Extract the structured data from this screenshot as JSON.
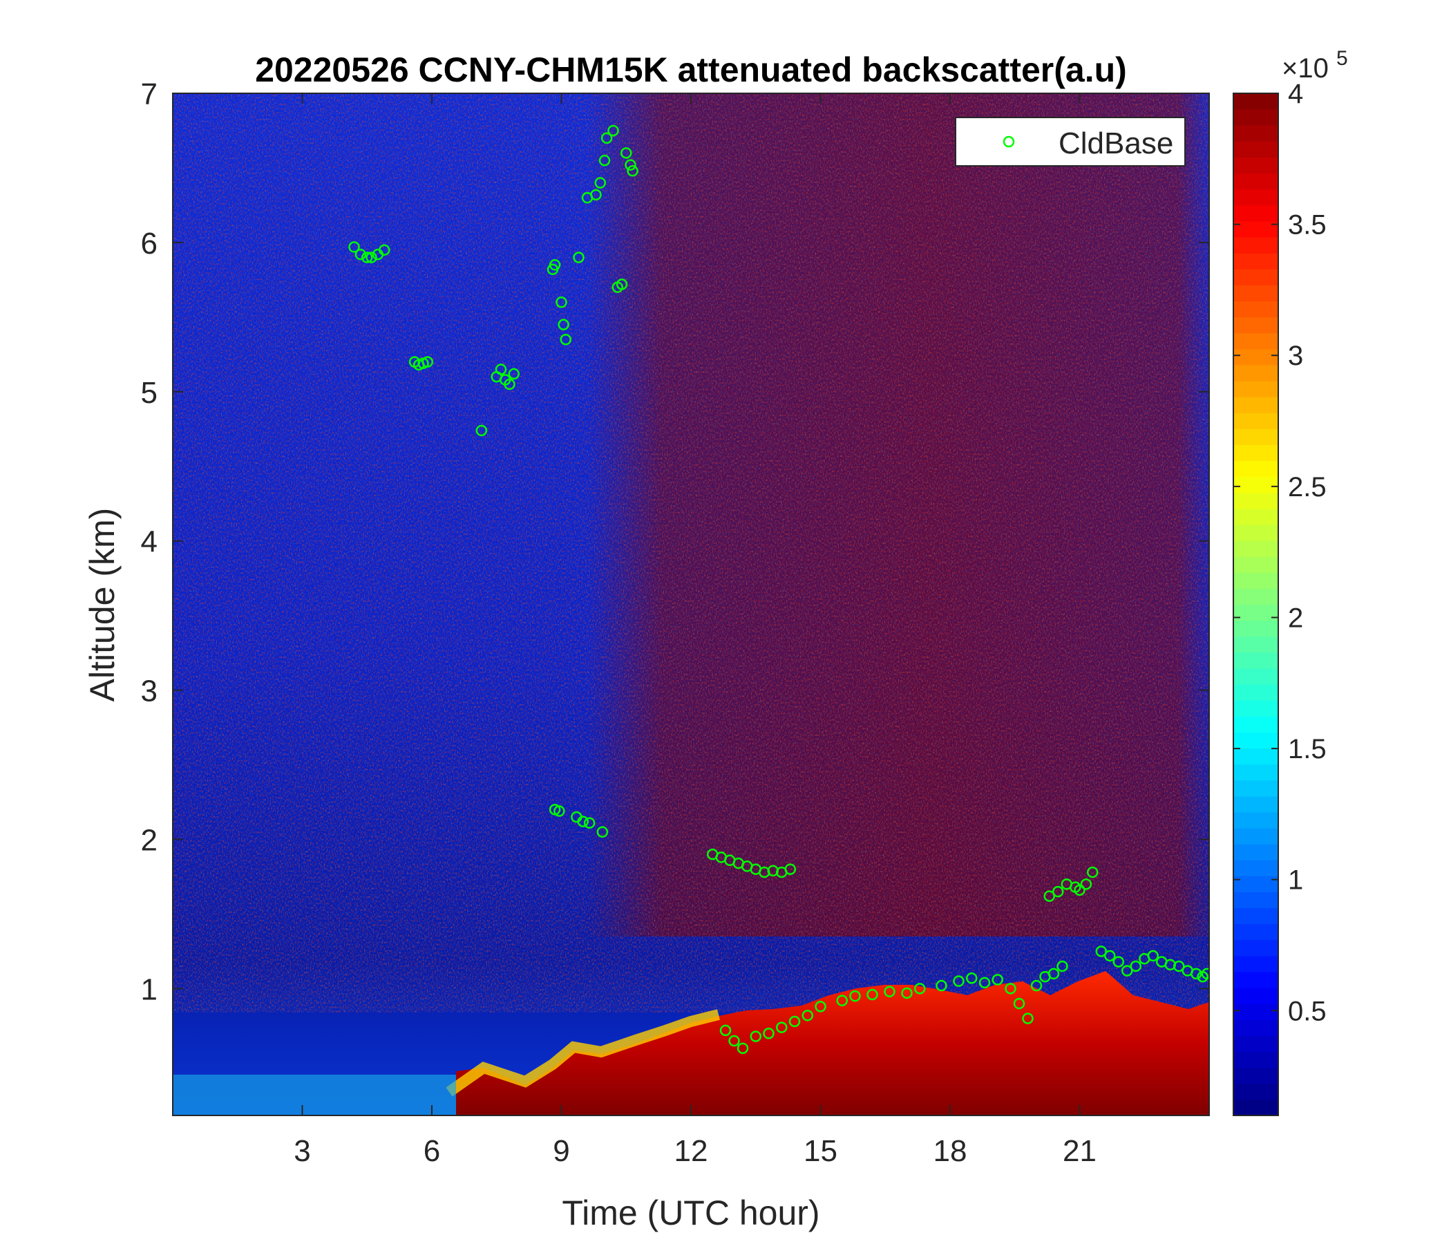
{
  "chart_data": {
    "type": "heatmap",
    "title": "20220526 CCNY-CHM15K attenuated backscatter(a.u)",
    "xlabel": "Time (UTC hour)",
    "ylabel": "Altitude (km)",
    "xlim": [
      0,
      24
    ],
    "ylim": [
      0.15,
      7
    ],
    "xticks": [
      3,
      6,
      9,
      12,
      15,
      18,
      21
    ],
    "yticks": [
      1,
      2,
      3,
      4,
      5,
      6,
      7
    ],
    "colorbar": {
      "colormap": "jet",
      "range": [
        0.1,
        4
      ],
      "ticks": [
        0.5,
        1,
        1.5,
        2,
        2.5,
        3,
        3.5,
        4
      ],
      "exponent_label": "×10",
      "exponent": "5"
    },
    "legend": {
      "position": "top-right",
      "entries": [
        "CldBase"
      ]
    },
    "series": [
      {
        "name": "CldBase",
        "type": "scatter",
        "marker": "open-circle",
        "color": "#00ff00",
        "x": [
          4.2,
          4.35,
          4.5,
          4.6,
          4.75,
          4.9,
          5.6,
          5.7,
          5.8,
          5.9,
          7.5,
          7.6,
          7.7,
          7.8,
          7.9,
          7.15,
          8.8,
          8.85,
          9.0,
          9.05,
          9.1,
          9.4,
          9.6,
          9.8,
          9.9,
          10.0,
          10.05,
          10.2,
          10.3,
          10.4,
          10.5,
          10.6,
          10.65,
          8.85,
          8.95,
          9.35,
          9.5,
          9.65,
          9.95,
          12.5,
          12.7,
          12.9,
          13.1,
          13.3,
          13.5,
          13.7,
          13.9,
          14.1,
          14.3,
          12.8,
          13.0,
          13.2,
          13.5,
          13.8,
          14.1,
          14.4,
          14.7,
          15.0,
          15.5,
          15.8,
          16.2,
          16.6,
          17.0,
          17.3,
          17.8,
          18.2,
          18.5,
          18.8,
          19.1,
          19.4,
          19.6,
          19.8,
          20.0,
          20.2,
          20.4,
          20.6,
          20.3,
          20.5,
          20.7,
          20.9,
          21.0,
          21.15,
          21.3,
          21.5,
          21.7,
          21.9,
          22.1,
          22.3,
          22.5,
          22.7,
          22.9,
          23.1,
          23.3,
          23.5,
          23.7,
          23.85,
          23.95
        ],
        "y": [
          5.97,
          5.92,
          5.9,
          5.9,
          5.92,
          5.95,
          5.2,
          5.18,
          5.19,
          5.2,
          5.1,
          5.15,
          5.08,
          5.05,
          5.12,
          4.74,
          5.82,
          5.85,
          5.6,
          5.45,
          5.35,
          5.9,
          6.3,
          6.32,
          6.4,
          6.55,
          6.7,
          6.75,
          5.7,
          5.72,
          6.6,
          6.52,
          6.48,
          2.2,
          2.19,
          2.15,
          2.12,
          2.11,
          2.05,
          1.9,
          1.88,
          1.86,
          1.84,
          1.82,
          1.8,
          1.78,
          1.79,
          1.78,
          1.8,
          0.72,
          0.65,
          0.6,
          0.68,
          0.7,
          0.74,
          0.78,
          0.82,
          0.88,
          0.92,
          0.95,
          0.96,
          0.98,
          0.97,
          1.0,
          1.02,
          1.05,
          1.07,
          1.04,
          1.06,
          1.0,
          0.9,
          0.8,
          1.02,
          1.08,
          1.1,
          1.15,
          1.62,
          1.65,
          1.7,
          1.68,
          1.66,
          1.7,
          1.78,
          1.25,
          1.22,
          1.18,
          1.12,
          1.15,
          1.2,
          1.22,
          1.18,
          1.16,
          1.15,
          1.12,
          1.1,
          1.08,
          1.1
        ]
      }
    ]
  }
}
